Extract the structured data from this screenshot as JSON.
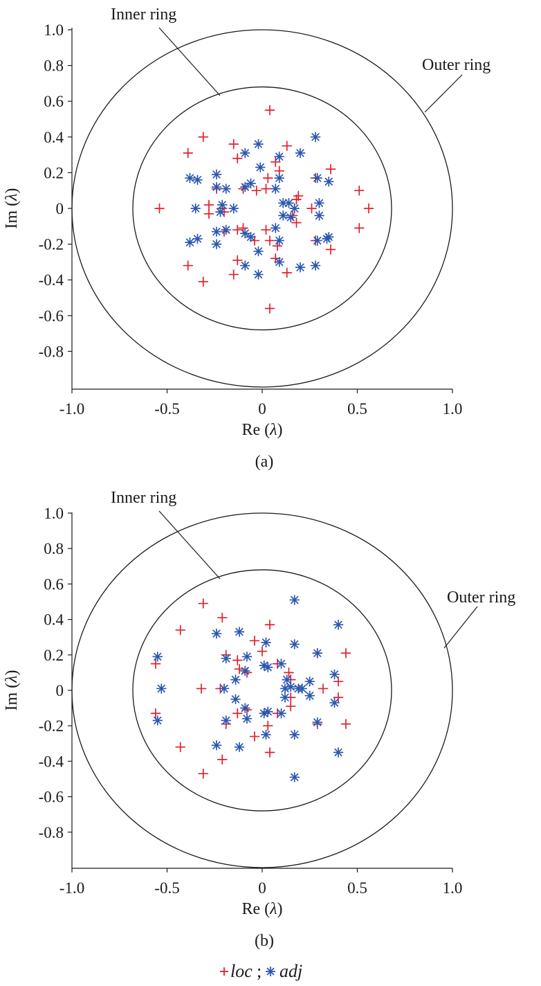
{
  "chart_data": [
    {
      "type": "scatter",
      "caption": "(a)",
      "xlabel_prefix": "Re (",
      "xlabel_sym": "λ",
      "xlabel_suffix": ")",
      "ylabel_prefix": "Im (",
      "ylabel_sym": "λ",
      "ylabel_suffix": ")",
      "xlim": [
        -1.0,
        1.0
      ],
      "ylim": [
        -1.0,
        1.0
      ],
      "xticks": [
        "-1.0",
        "-0.5",
        "0",
        "0.5",
        "1.0"
      ],
      "xtick_values": [
        -1.0,
        -0.5,
        0,
        0.5,
        1.0
      ],
      "yticks": [
        "1.0",
        "0.8",
        "0.6",
        "0.4",
        "0.2",
        "0",
        "-0.2",
        "-0.4",
        "-0.6",
        "-0.8"
      ],
      "ytick_values": [
        1.0,
        0.8,
        0.6,
        0.4,
        0.2,
        0,
        -0.2,
        -0.4,
        -0.6,
        -0.8
      ],
      "rings": [
        {
          "label": "Inner ring",
          "radius": 0.68
        },
        {
          "label": "Outer ring",
          "radius": 1.0
        }
      ],
      "annotations": {
        "inner": "Inner ring",
        "outer": "Outer ring"
      },
      "series": [
        {
          "name": "loc",
          "marker": "plus",
          "color": "#e0202a",
          "points": [
            [
              0.04,
              0.55
            ],
            [
              -0.31,
              0.4
            ],
            [
              -0.39,
              0.31
            ],
            [
              -0.15,
              0.36
            ],
            [
              -0.13,
              0.28
            ],
            [
              0.13,
              0.35
            ],
            [
              0.07,
              0.26
            ],
            [
              0.09,
              0.21
            ],
            [
              0.36,
              0.22
            ],
            [
              0.28,
              0.17
            ],
            [
              0.51,
              0.1
            ],
            [
              0.56,
              0.0
            ],
            [
              -0.54,
              0.0
            ],
            [
              -0.28,
              0.02
            ],
            [
              -0.28,
              -0.03
            ],
            [
              -0.24,
              0.11
            ],
            [
              -0.2,
              -0.13
            ],
            [
              -0.1,
              0.11
            ],
            [
              -0.03,
              0.1
            ],
            [
              0.03,
              0.17
            ],
            [
              0.02,
              0.11
            ],
            [
              0.18,
              0.05
            ],
            [
              0.19,
              0.07
            ],
            [
              0.26,
              0.0
            ],
            [
              0.18,
              -0.08
            ],
            [
              0.16,
              -0.04
            ],
            [
              -0.13,
              -0.12
            ],
            [
              -0.1,
              -0.11
            ],
            [
              -0.04,
              -0.18
            ],
            [
              0.02,
              -0.12
            ],
            [
              0.04,
              -0.18
            ],
            [
              0.08,
              -0.21
            ],
            [
              0.07,
              -0.28
            ],
            [
              0.28,
              -0.18
            ],
            [
              0.36,
              -0.23
            ],
            [
              0.51,
              -0.11
            ],
            [
              -0.39,
              -0.32
            ],
            [
              -0.31,
              -0.41
            ],
            [
              -0.15,
              -0.37
            ],
            [
              -0.13,
              -0.29
            ],
            [
              0.13,
              -0.36
            ],
            [
              0.04,
              -0.56
            ],
            [
              -0.21,
              0.0
            ],
            [
              -0.2,
              -0.02
            ]
          ]
        },
        {
          "name": "adj",
          "marker": "asterisk",
          "color": "#2b57b0",
          "points": [
            [
              0.28,
              0.4
            ],
            [
              -0.02,
              0.36
            ],
            [
              0.2,
              0.31
            ],
            [
              -0.09,
              0.31
            ],
            [
              0.09,
              0.29
            ],
            [
              -0.01,
              0.23
            ],
            [
              -0.38,
              0.17
            ],
            [
              -0.34,
              0.16
            ],
            [
              -0.24,
              0.19
            ],
            [
              -0.24,
              0.12
            ],
            [
              -0.19,
              0.11
            ],
            [
              -0.09,
              0.12
            ],
            [
              -0.06,
              0.14
            ],
            [
              0.07,
              0.11
            ],
            [
              0.09,
              0.17
            ],
            [
              0.29,
              0.17
            ],
            [
              0.35,
              0.15
            ],
            [
              -0.35,
              0.0
            ],
            [
              -0.21,
              0.02
            ],
            [
              -0.22,
              -0.02
            ],
            [
              -0.15,
              0.0
            ],
            [
              0.11,
              0.03
            ],
            [
              0.14,
              0.03
            ],
            [
              0.17,
              0.0
            ],
            [
              0.3,
              0.03
            ],
            [
              0.3,
              -0.04
            ],
            [
              0.11,
              -0.04
            ],
            [
              0.15,
              -0.05
            ],
            [
              -0.38,
              -0.19
            ],
            [
              -0.34,
              -0.17
            ],
            [
              -0.24,
              -0.2
            ],
            [
              -0.24,
              -0.13
            ],
            [
              -0.19,
              -0.12
            ],
            [
              -0.09,
              -0.14
            ],
            [
              -0.06,
              -0.16
            ],
            [
              0.07,
              -0.11
            ],
            [
              0.09,
              -0.18
            ],
            [
              0.29,
              -0.18
            ],
            [
              0.35,
              -0.16
            ],
            [
              -0.09,
              -0.32
            ],
            [
              -0.02,
              -0.24
            ],
            [
              -0.02,
              -0.37
            ],
            [
              0.09,
              -0.3
            ],
            [
              0.2,
              -0.33
            ],
            [
              0.28,
              -0.32
            ],
            [
              0.34,
              -0.17
            ]
          ]
        }
      ]
    },
    {
      "type": "scatter",
      "caption": "(b)",
      "xlabel_prefix": "Re (",
      "xlabel_sym": "λ",
      "xlabel_suffix": ")",
      "ylabel_prefix": "Im (",
      "ylabel_sym": "λ",
      "ylabel_suffix": ")",
      "xlim": [
        -1.0,
        1.0
      ],
      "ylim": [
        -1.0,
        1.0
      ],
      "xticks": [
        "-1.0",
        "-0.5",
        "0",
        "0.5",
        "1.0"
      ],
      "xtick_values": [
        -1.0,
        -0.5,
        0,
        0.5,
        1.0
      ],
      "yticks": [
        "1.0",
        "0.8",
        "0.6",
        "0.4",
        "0.2",
        "0",
        "-0.2",
        "-0.4",
        "-0.6",
        "-0.8"
      ],
      "ytick_values": [
        1.0,
        0.8,
        0.6,
        0.4,
        0.2,
        0,
        -0.2,
        -0.4,
        -0.6,
        -0.8
      ],
      "rings": [
        {
          "label": "Inner ring",
          "radius": 0.68
        },
        {
          "label": "Outer ring",
          "radius": 1.0
        }
      ],
      "annotations": {
        "inner": "Inner ring",
        "outer": "Outer ring"
      },
      "series": [
        {
          "name": "loc",
          "marker": "plus",
          "color": "#e0202a",
          "points": [
            [
              -0.31,
              0.49
            ],
            [
              -0.21,
              0.41
            ],
            [
              -0.43,
              0.34
            ],
            [
              0.04,
              0.37
            ],
            [
              -0.19,
              0.2
            ],
            [
              -0.13,
              0.17
            ],
            [
              -0.12,
              0.12
            ],
            [
              -0.04,
              0.28
            ],
            [
              0.0,
              0.22
            ],
            [
              0.08,
              0.15
            ],
            [
              0.14,
              0.1
            ],
            [
              0.15,
              0.06
            ],
            [
              -0.56,
              0.15
            ],
            [
              -0.32,
              0.01
            ],
            [
              -0.22,
              0.01
            ],
            [
              -0.08,
              0.1
            ],
            [
              0.32,
              0.01
            ],
            [
              0.4,
              0.05
            ],
            [
              0.44,
              0.21
            ],
            [
              0.29,
              0.21
            ],
            [
              0.15,
              -0.04
            ],
            [
              0.15,
              -0.09
            ],
            [
              -0.19,
              -0.19
            ],
            [
              -0.13,
              -0.13
            ],
            [
              -0.08,
              -0.11
            ],
            [
              0.03,
              -0.2
            ],
            [
              0.08,
              -0.13
            ],
            [
              -0.04,
              -0.26
            ],
            [
              0.04,
              -0.35
            ],
            [
              -0.56,
              -0.13
            ],
            [
              -0.43,
              -0.32
            ],
            [
              -0.21,
              -0.39
            ],
            [
              -0.31,
              -0.47
            ],
            [
              0.29,
              -0.19
            ],
            [
              0.4,
              -0.04
            ],
            [
              0.44,
              -0.19
            ]
          ]
        },
        {
          "name": "adj",
          "marker": "asterisk",
          "color": "#2b57b0",
          "points": [
            [
              0.17,
              0.51
            ],
            [
              0.4,
              0.37
            ],
            [
              -0.24,
              0.32
            ],
            [
              -0.12,
              0.33
            ],
            [
              0.02,
              0.27
            ],
            [
              0.17,
              0.26
            ],
            [
              0.29,
              0.21
            ],
            [
              -0.19,
              0.18
            ],
            [
              -0.08,
              0.19
            ],
            [
              -0.09,
              0.11
            ],
            [
              0.01,
              0.14
            ],
            [
              0.03,
              0.13
            ],
            [
              0.1,
              0.15
            ],
            [
              0.38,
              0.09
            ],
            [
              -0.55,
              0.19
            ],
            [
              -0.53,
              0.01
            ],
            [
              -0.2,
              0.01
            ],
            [
              -0.14,
              0.06
            ],
            [
              0.12,
              0.01
            ],
            [
              0.13,
              0.06
            ],
            [
              0.15,
              0.02
            ],
            [
              0.19,
              0.01
            ],
            [
              0.21,
              0.01
            ],
            [
              0.25,
              0.05
            ],
            [
              0.25,
              -0.03
            ],
            [
              0.38,
              -0.07
            ],
            [
              0.12,
              -0.04
            ],
            [
              -0.19,
              -0.17
            ],
            [
              -0.14,
              -0.05
            ],
            [
              -0.09,
              -0.1
            ],
            [
              -0.08,
              -0.16
            ],
            [
              0.01,
              -0.13
            ],
            [
              0.03,
              -0.12
            ],
            [
              0.1,
              -0.13
            ],
            [
              0.02,
              -0.25
            ],
            [
              0.17,
              -0.25
            ],
            [
              0.29,
              -0.18
            ],
            [
              -0.55,
              -0.17
            ],
            [
              -0.24,
              -0.31
            ],
            [
              -0.12,
              -0.32
            ],
            [
              0.17,
              -0.49
            ],
            [
              0.4,
              -0.35
            ]
          ]
        }
      ]
    }
  ],
  "legend": {
    "loc_label": "loc",
    "separator": ";",
    "adj_label": "adj"
  }
}
